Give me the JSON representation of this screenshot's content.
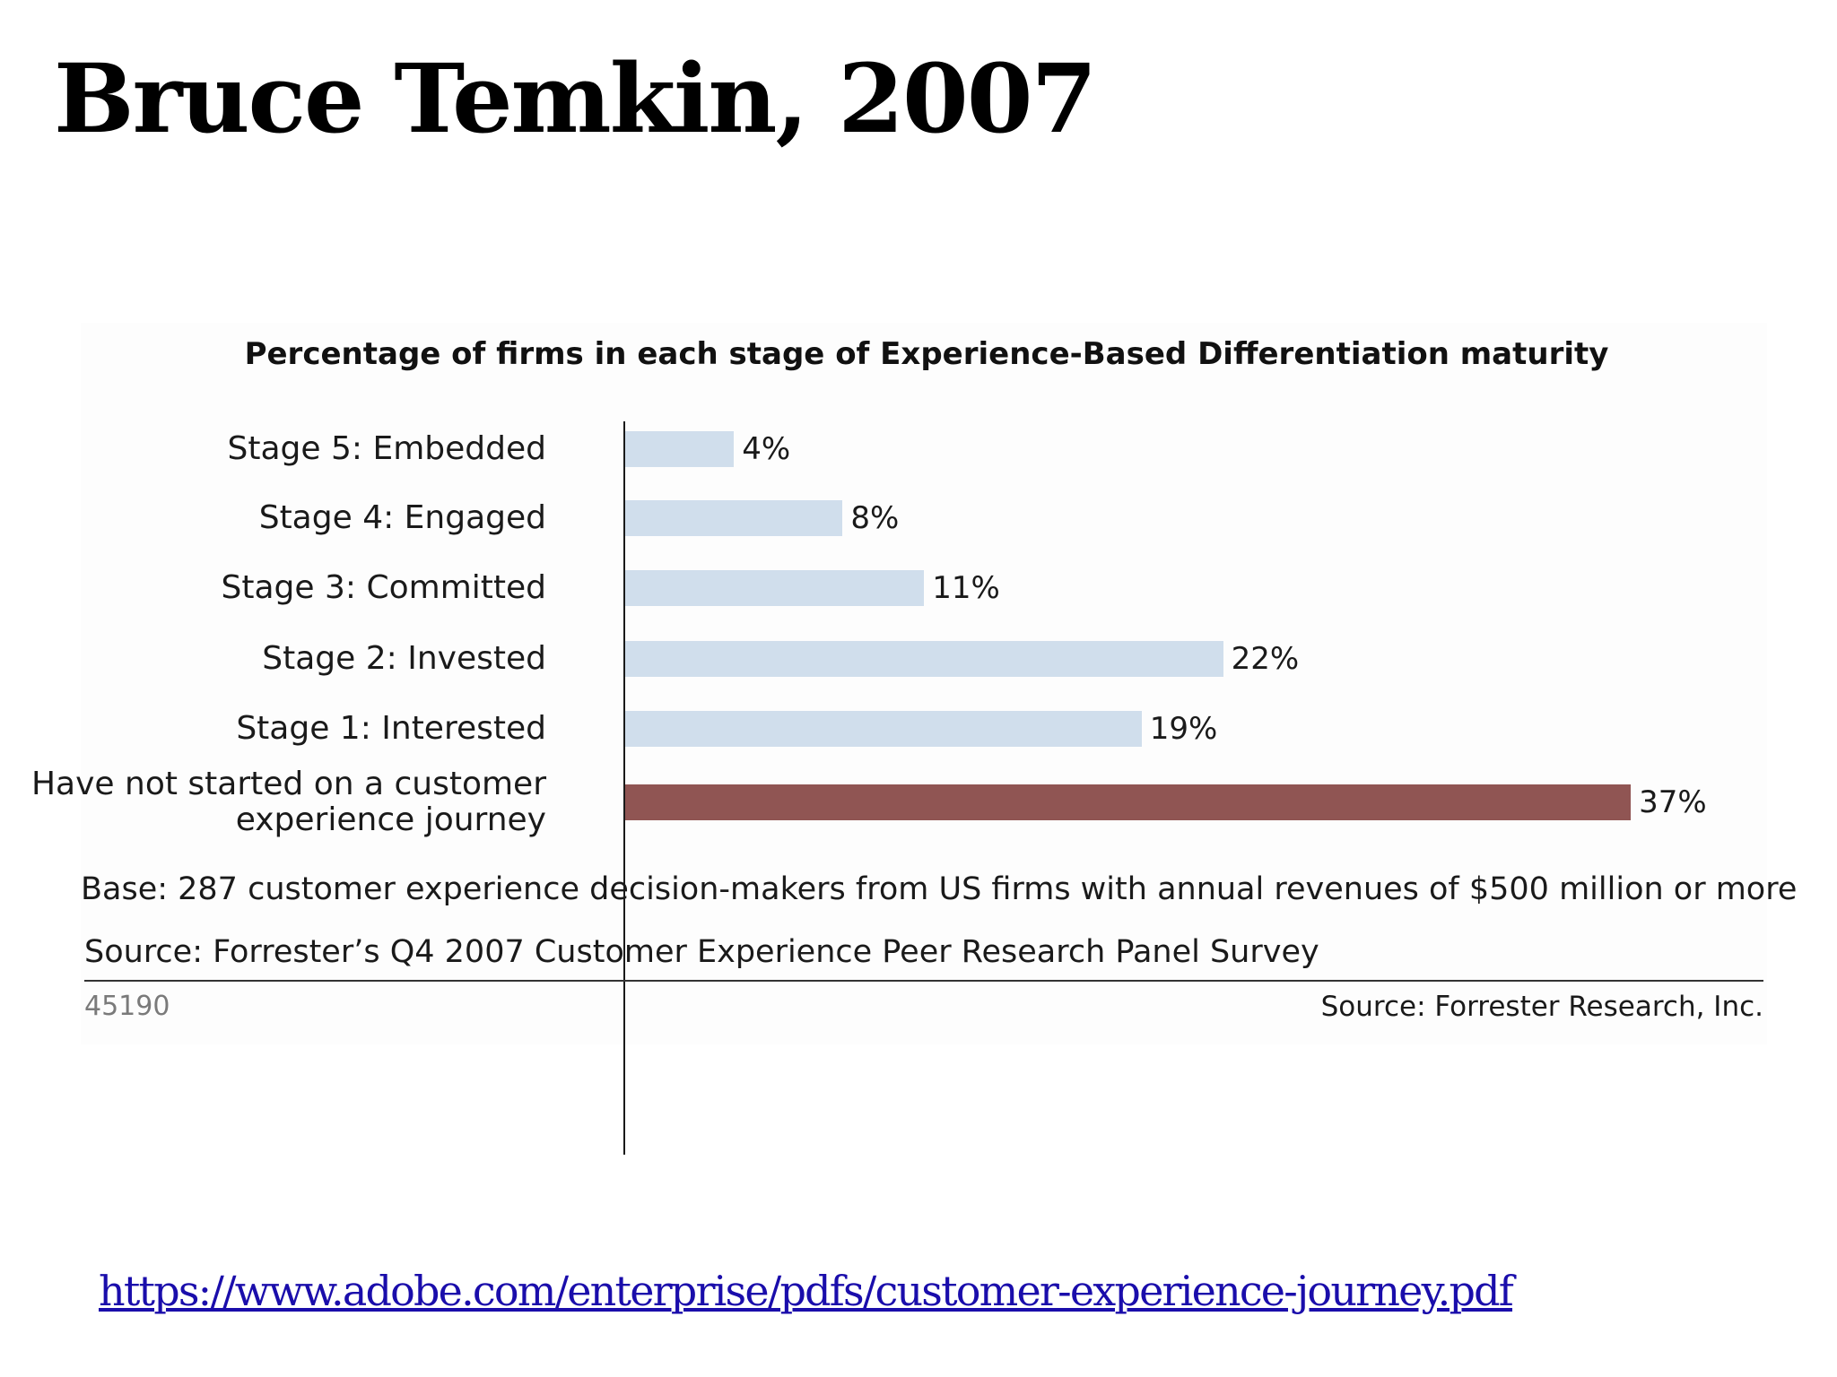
{
  "slide": {
    "title": "Bruce Temkin, 2007",
    "link": "https://www.adobe.com/enterprise/pdfs/customer-experience-journey.pdf"
  },
  "chart_data": {
    "type": "bar",
    "orientation": "horizontal",
    "title": "Percentage of firms in each stage of Experience-Based Differentiation maturity",
    "categories": [
      [
        "Stage 5: Embedded"
      ],
      [
        "Stage 4: Engaged"
      ],
      [
        "Stage 3: Committed"
      ],
      [
        "Stage 2: Invested"
      ],
      [
        "Stage 1: Interested"
      ],
      [
        "Have not started on a customer",
        "experience journey"
      ]
    ],
    "values": [
      4,
      8,
      11,
      22,
      19,
      37
    ],
    "value_labels": [
      "4%",
      "8%",
      "11%",
      "22%",
      "19%",
      "37%"
    ],
    "bar_colors": [
      "#d0deec",
      "#d0deec",
      "#d0deec",
      "#d0deec",
      "#d0deec",
      "#905553"
    ],
    "xlim": [
      0,
      37
    ],
    "grid": false,
    "base_note": "Base: 287 customer experience decision-makers from US firms with annual revenues of $500 million or more",
    "source_note": "Source: Forrester’s Q4 2007 Customer Experience Peer Research Panel Survey",
    "figure_number": "45190",
    "credit": "Source: Forrester Research, Inc."
  }
}
